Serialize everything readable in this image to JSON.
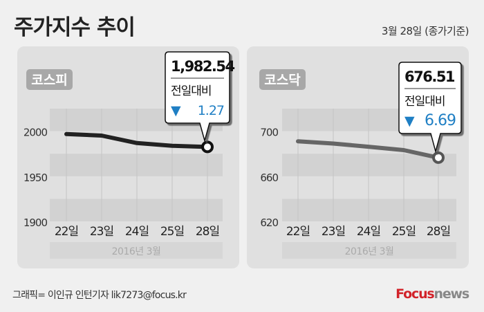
{
  "header": {
    "title": "주가지수 추이",
    "date": "3월 28일 (종가기준)"
  },
  "footer": {
    "credit": "그래픽= 이인규 인턴기자 lik7273@focus.kr",
    "logo_a": "Focus",
    "logo_b": "news"
  },
  "colors": {
    "down": "#1f7fc4",
    "panel": "#e0e0e0",
    "band": "#d2d2d2",
    "label_bg": "#a8a8a8"
  },
  "chart_data": [
    {
      "type": "line",
      "title": "코스피",
      "categories": [
        "22일",
        "23일",
        "24일",
        "25일",
        "28일"
      ],
      "xlabel": "2016년  3월",
      "values": [
        1996.81,
        1995.09,
        1986.82,
        1983.81,
        1982.54
      ],
      "ylim": [
        1900,
        2025
      ],
      "yticks": [
        "1900",
        "1950",
        "2000"
      ],
      "ytick_values": [
        1900,
        1950,
        2000
      ],
      "line_color": "#222222",
      "callout": {
        "value": "1,982.54",
        "label": "전일대비",
        "arrow": "▼",
        "change": "1.27",
        "direction": "down"
      }
    },
    {
      "type": "line",
      "title": "코스닥",
      "categories": [
        "22일",
        "23일",
        "24일",
        "25일",
        "28일"
      ],
      "xlabel": "2016년  3월",
      "values": [
        691.0,
        689.0,
        686.2,
        683.2,
        676.51
      ],
      "ylim": [
        620,
        720
      ],
      "yticks": [
        "620",
        "660",
        "700"
      ],
      "ytick_values": [
        620,
        660,
        700
      ],
      "line_color": "#666666",
      "callout": {
        "value": "676.51",
        "label": "전일대비",
        "arrow": "▼",
        "change": "6.69",
        "direction": "down"
      }
    }
  ]
}
